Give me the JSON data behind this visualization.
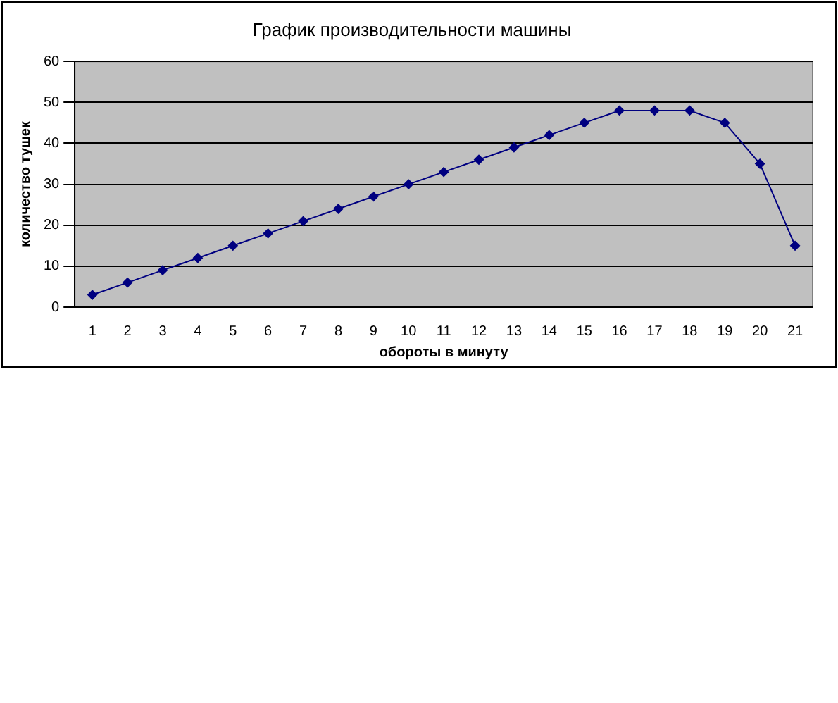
{
  "chart_data": {
    "type": "line",
    "title": "График производительности машины",
    "xlabel": "обороты в минуту",
    "ylabel": "количество тушек",
    "x": [
      1,
      2,
      3,
      4,
      5,
      6,
      7,
      8,
      9,
      10,
      11,
      12,
      13,
      14,
      15,
      16,
      17,
      18,
      19,
      20,
      21
    ],
    "series": [
      {
        "color": "#000080",
        "values": [
          3,
          6,
          9,
          12,
          15,
          18,
          21,
          24,
          27,
          30,
          33,
          36,
          39,
          42,
          45,
          48,
          48,
          48,
          45,
          35,
          15
        ]
      }
    ],
    "xlim": [
      0.5,
      21.5
    ],
    "xticks": [
      1,
      2,
      3,
      4,
      5,
      6,
      7,
      8,
      9,
      10,
      11,
      12,
      13,
      14,
      15,
      16,
      17,
      18,
      19,
      20,
      21
    ],
    "ylim": [
      0,
      60
    ],
    "yticks": [
      0,
      10,
      20,
      30,
      40,
      50,
      60
    ],
    "grid": "y",
    "legend": false,
    "marker": "diamond",
    "line_style": "solid"
  }
}
